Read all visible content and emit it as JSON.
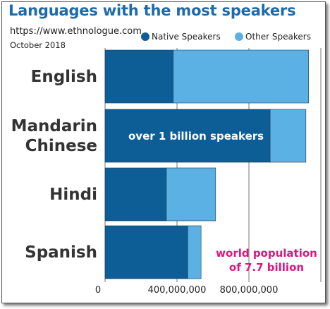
{
  "title": "Languages with the most speakers",
  "source": "https://www.ethnologue.com",
  "date": "October 2018",
  "annotations": {
    "billion": "over 1 billion speakers",
    "world_line1": "world population",
    "world_line2": "of 7.7 billion"
  },
  "colors": {
    "native": "#0d5e96",
    "other": "#5cb1e4",
    "title": "#1f6aa8",
    "annotation": "#e0157f"
  },
  "chart_data": {
    "type": "bar",
    "orientation": "horizontal",
    "stacked": true,
    "categories": [
      "English",
      "Mandarin Chinese",
      "Hindi",
      "Spanish"
    ],
    "category_lines": [
      [
        "English"
      ],
      [
        "Mandarin",
        "Chinese"
      ],
      [
        "Hindi"
      ],
      [
        "Spanish"
      ]
    ],
    "series": [
      {
        "name": "Native Speakers",
        "values": [
          379000000,
          918000000,
          341000000,
          460000000
        ]
      },
      {
        "name": "Other Speakers",
        "values": [
          753000000,
          199000000,
          274000000,
          74000000
        ]
      }
    ],
    "xlim": [
      0,
      1200000000
    ],
    "xticks": [
      0,
      400000000,
      800000000
    ],
    "xtick_labels": [
      "0",
      "400,000,000",
      "800,000,000"
    ],
    "grid": true,
    "legend": "top-right"
  }
}
